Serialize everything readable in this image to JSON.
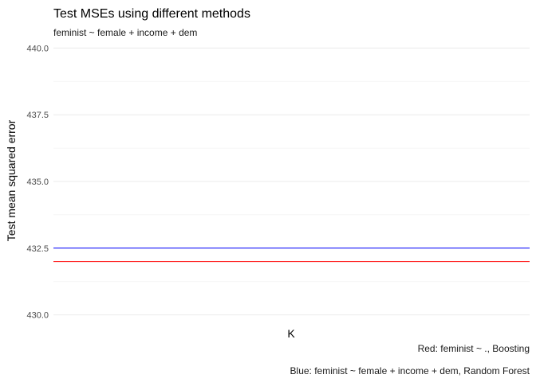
{
  "chart_data": {
    "type": "line",
    "title": "Test MSEs using different methods",
    "subtitle": "feminist ~ female + income + dem",
    "xlabel": "K",
    "ylabel": "Test mean squared error",
    "ylim": [
      429.75,
      440.25
    ],
    "yticks": [
      "430.0",
      "432.5",
      "435.0",
      "437.5",
      "440.0"
    ],
    "ytick_values": [
      430.0,
      432.5,
      435.0,
      437.5,
      440.0
    ],
    "grid": true,
    "series": [
      {
        "value": 432.5,
        "color": "#0000ff"
      },
      {
        "value": 432.0,
        "color": "#ff0000"
      }
    ],
    "captions": [
      "Red: feminist ~ ., Boosting",
      "Blue: feminist ~ female + income + dem, Random Forest"
    ]
  }
}
